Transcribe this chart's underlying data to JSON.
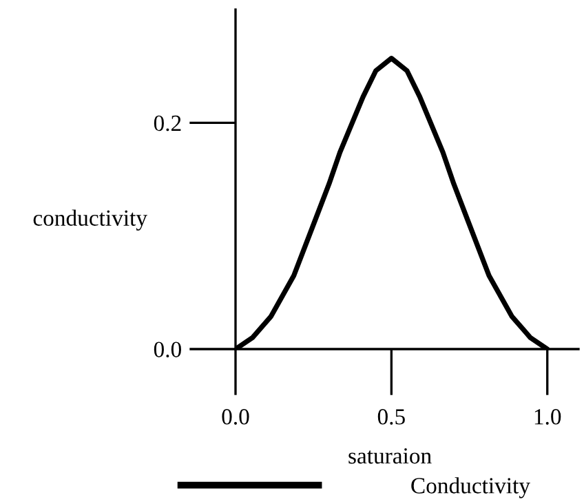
{
  "chart_data": {
    "type": "line",
    "xlabel": "saturaion",
    "ylabel": "conductivity",
    "x": [
      0,
      0.054,
      0.114,
      0.187,
      0.261,
      0.3,
      0.335,
      0.409,
      0.45,
      0.5,
      0.55,
      0.591,
      0.665,
      0.7,
      0.739,
      0.813,
      0.886,
      0.946,
      1
    ],
    "series": [
      {
        "name": "Conductivity",
        "color": "#000000",
        "values": [
          0,
          0.01,
          0.029,
          0.065,
          0.118,
          0.146,
          0.174,
          0.223,
          0.246,
          0.257,
          0.246,
          0.223,
          0.174,
          0.146,
          0.118,
          0.065,
          0.029,
          0.01,
          0
        ]
      }
    ],
    "xlim": [
      0,
      1.1
    ],
    "ylim": [
      0,
      0.3
    ],
    "xticks": [
      {
        "value": 0,
        "label": "0.0"
      },
      0.5,
      {
        "value": 1,
        "label": "1.0"
      }
    ],
    "yticks": [
      {
        "value": 0,
        "label": "0.0"
      },
      0.2
    ],
    "grid": false,
    "legend": "bottom",
    "line_style": "solid",
    "marker": "none"
  }
}
